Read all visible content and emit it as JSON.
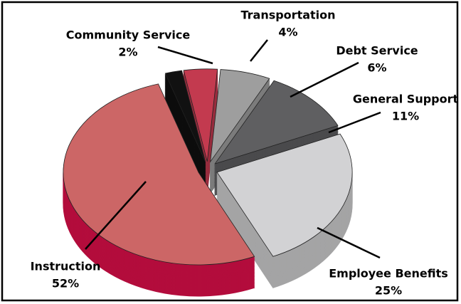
{
  "chart_data": {
    "type": "pie",
    "categories": [
      "Transportation",
      "Debt Service",
      "General Support",
      "Employee Benefits",
      "Instruction",
      "Community Service"
    ],
    "values": [
      4,
      6,
      11,
      25,
      52,
      2
    ],
    "value_labels": [
      "4%",
      "6%",
      "11%",
      "25%",
      "52%",
      "2%"
    ],
    "colors": [
      "#c33a4f",
      "#9e9e9e",
      "#5f5f61",
      "#d2d2d4",
      "#cc6666",
      "#111111"
    ]
  }
}
